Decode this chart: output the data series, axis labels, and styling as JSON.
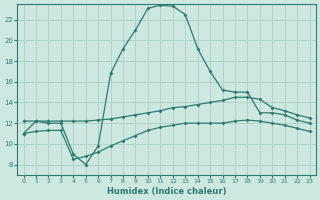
{
  "xlabel": "Humidex (Indice chaleur)",
  "ylabel": "",
  "background_color": "#cce8e0",
  "grid_color": "#aacfc8",
  "line_color": "#2d7a6e",
  "xlim": [
    -0.5,
    23.5
  ],
  "ylim": [
    7,
    23.5
  ],
  "yticks": [
    8,
    10,
    12,
    14,
    16,
    18,
    20,
    22
  ],
  "xticks": [
    0,
    1,
    2,
    3,
    4,
    5,
    6,
    7,
    8,
    9,
    10,
    11,
    12,
    13,
    14,
    15,
    16,
    17,
    18,
    19,
    20,
    21,
    22,
    23
  ],
  "line1_x": [
    0,
    1,
    2,
    3,
    4,
    5,
    6,
    7,
    8,
    9,
    10,
    11,
    12,
    13,
    14,
    15,
    16,
    17,
    18,
    19,
    20,
    21,
    22,
    23
  ],
  "line1_y": [
    11.0,
    12.2,
    12.0,
    12.0,
    9.0,
    8.0,
    9.8,
    16.8,
    19.2,
    21.0,
    23.1,
    23.4,
    23.3,
    22.5,
    19.2,
    17.0,
    15.2,
    15.0,
    15.0,
    13.0,
    13.0,
    12.8,
    12.3,
    12.0
  ],
  "line2_x": [
    0,
    1,
    2,
    3,
    4,
    5,
    6,
    7,
    8,
    9,
    10,
    11,
    12,
    13,
    14,
    15,
    16,
    17,
    18,
    19,
    20,
    21,
    22,
    23
  ],
  "line2_y": [
    12.2,
    12.2,
    12.2,
    12.2,
    12.2,
    12.2,
    12.3,
    12.4,
    12.6,
    12.8,
    13.0,
    13.2,
    13.5,
    13.6,
    13.8,
    14.0,
    14.2,
    14.5,
    14.5,
    14.3,
    13.5,
    13.2,
    12.8,
    12.5
  ],
  "line3_x": [
    0,
    1,
    2,
    3,
    4,
    5,
    6,
    7,
    8,
    9,
    10,
    11,
    12,
    13,
    14,
    15,
    16,
    17,
    18,
    19,
    20,
    21,
    22,
    23
  ],
  "line3_y": [
    11.0,
    11.2,
    11.3,
    11.3,
    8.5,
    8.8,
    9.2,
    9.8,
    10.3,
    10.8,
    11.3,
    11.6,
    11.8,
    12.0,
    12.0,
    12.0,
    12.0,
    12.2,
    12.3,
    12.2,
    12.0,
    11.8,
    11.5,
    11.2
  ]
}
